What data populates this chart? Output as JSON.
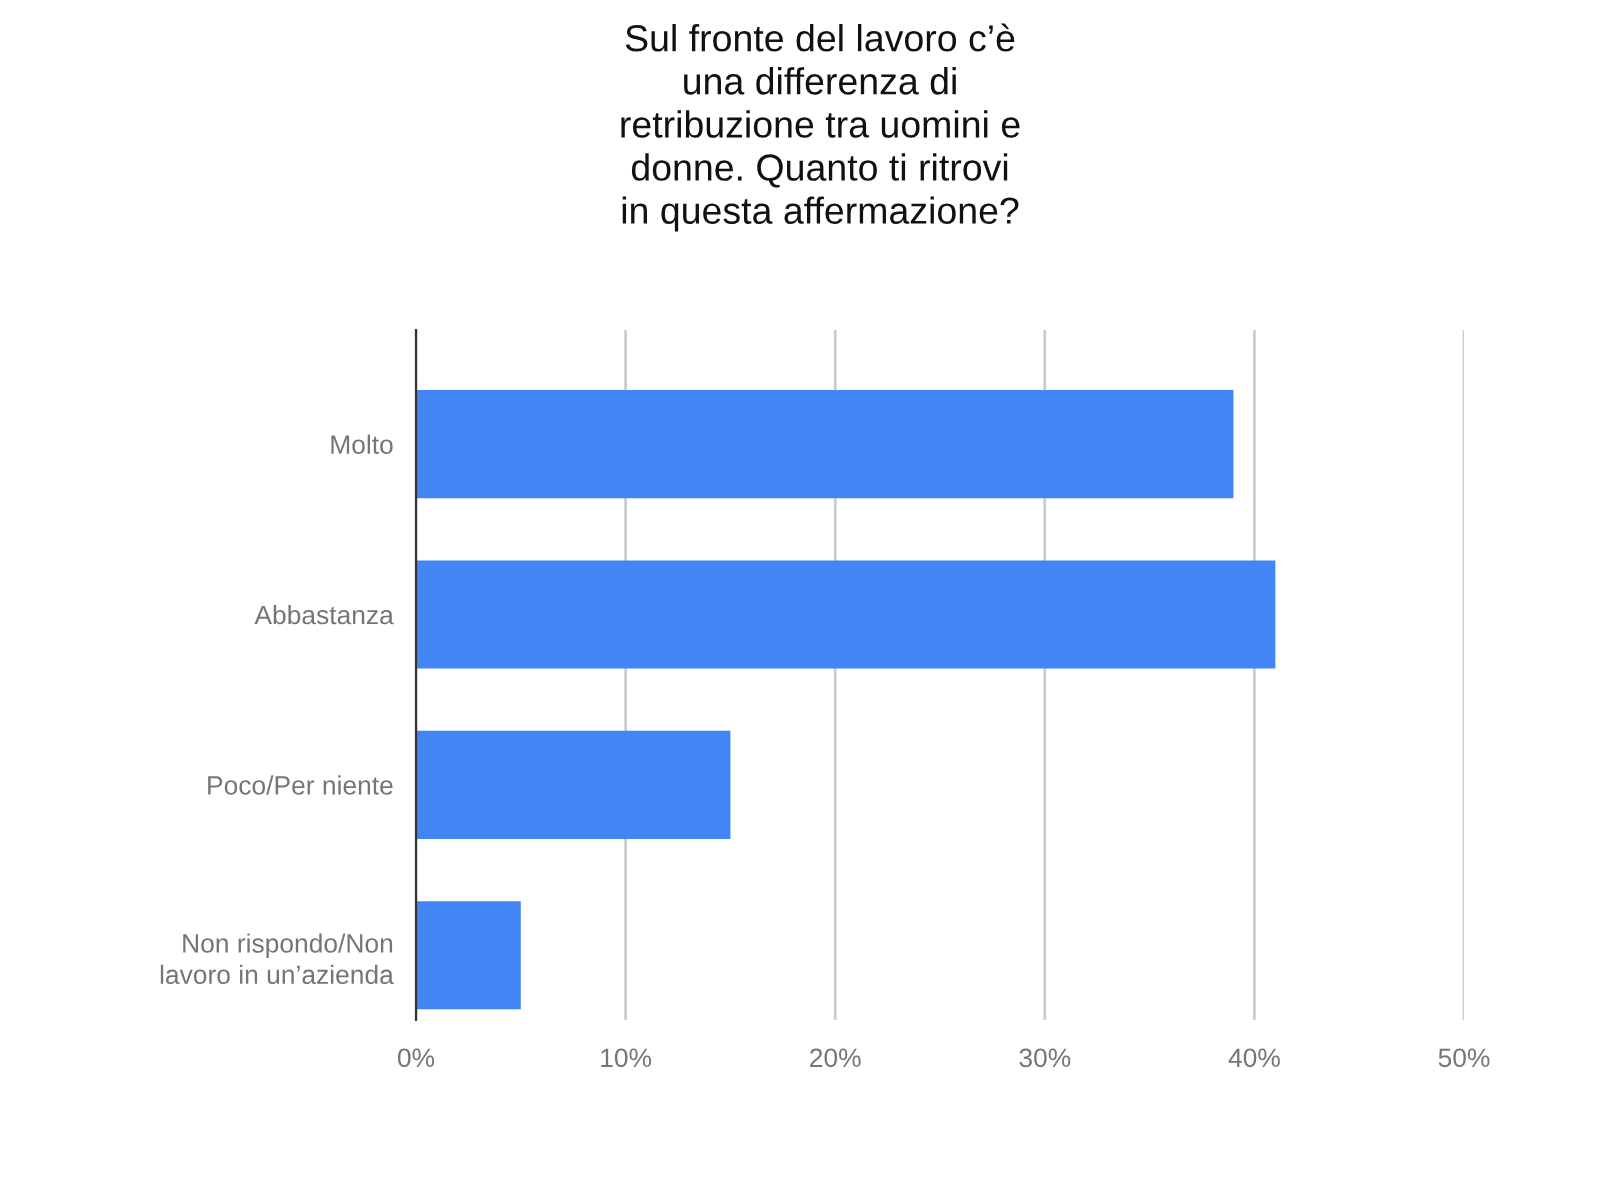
{
  "chart_data": {
    "type": "bar",
    "orientation": "horizontal",
    "title": "Sul fronte del lavoro c’è\nuna differenza di\nretribuzione tra uomini e\ndonne. Quanto ti ritrovi\nin questa affermazione?",
    "categories": [
      "Molto",
      "Abbastanza",
      "Poco/Per niente",
      "Non rispondo/Non\nlavoro in un’azienda"
    ],
    "values": [
      39,
      41,
      15,
      5
    ],
    "color": "#4285f4",
    "xlim": [
      0,
      50
    ],
    "xticks": [
      {
        "value": 0,
        "label": "0%"
      },
      {
        "value": 10,
        "label": "10%"
      },
      {
        "value": 20,
        "label": "20%"
      },
      {
        "value": 30,
        "label": "30%"
      },
      {
        "value": 40,
        "label": "40%"
      },
      {
        "value": 50,
        "label": "50%"
      }
    ],
    "grid": "x",
    "legend": false
  }
}
